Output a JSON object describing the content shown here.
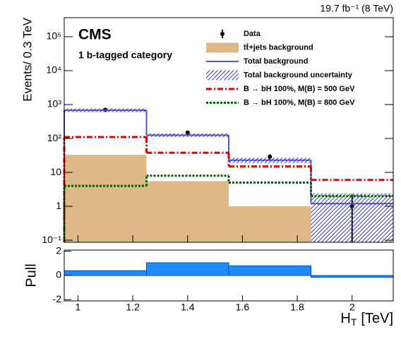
{
  "chart_data": [
    {
      "type": "histogram",
      "log_y": true,
      "title": "CMS",
      "subtitle": "1 b-tagged category",
      "annotation": "19.7 fb⁻¹ (8 TeV)",
      "y_label": "Events/ 0.3 TeV",
      "bins": [
        0.95,
        1.25,
        1.55,
        1.85,
        2.15
      ],
      "xlim": [
        0.95,
        2.15
      ],
      "ylim": [
        0.087,
        365000
      ],
      "yticks": [
        {
          "value": 0.1,
          "label": "10⁻¹"
        },
        1,
        10,
        {
          "value": 100,
          "label": "10²"
        },
        {
          "value": 1000,
          "label": "10³"
        },
        {
          "value": 10000,
          "label": "10⁴"
        },
        {
          "value": 100000,
          "label": "10⁵"
        }
      ],
      "series": [
        {
          "name": "Data",
          "style": "points",
          "color": "#000000",
          "x": [
            1.1,
            1.4,
            1.7,
            2.0
          ],
          "values": [
            700,
            150,
            29,
            1
          ],
          "errors": [
            26,
            12,
            5,
            1.3
          ]
        },
        {
          "name": "tt̄+jets background",
          "style": "fill",
          "color": "#deb887",
          "values": [
            33,
            5.5,
            1.0,
            null
          ]
        },
        {
          "name": "Total background",
          "style": "step",
          "color": "#5050d8",
          "values": [
            680,
            125,
            23,
            1.2
          ]
        },
        {
          "name": "Total background uncertainty",
          "style": "band",
          "color": "#3c3cb4",
          "low": [
            600,
            110,
            19,
            0.05
          ],
          "high": [
            770,
            142,
            27,
            2.4
          ]
        },
        {
          "name": "B → bH 100%, M(B) = 500 GeV",
          "style": "dashdot",
          "color": "#e00000",
          "values": [
            110,
            38,
            15,
            6
          ]
        },
        {
          "name": "B → bH 100%, M(B) = 800 GeV",
          "style": "dotted",
          "color": "#006400",
          "values": [
            4,
            8,
            5,
            2
          ]
        }
      ]
    },
    {
      "type": "histogram",
      "y_label": "Pull",
      "x_label": {
        "main": "H",
        "sub": "T",
        "unit": "[TeV]"
      },
      "bins": [
        0.95,
        1.25,
        1.55,
        1.85,
        2.15
      ],
      "xlim": [
        0.95,
        2.15
      ],
      "ylim": [
        -2.1,
        2.1
      ],
      "xticks": [
        1,
        1.2,
        1.4,
        1.6,
        1.8,
        2
      ],
      "yticks": [
        -2,
        0,
        2
      ],
      "color": "#1e8cff",
      "values": [
        0.4,
        1.05,
        0.8,
        -0.15
      ]
    }
  ]
}
